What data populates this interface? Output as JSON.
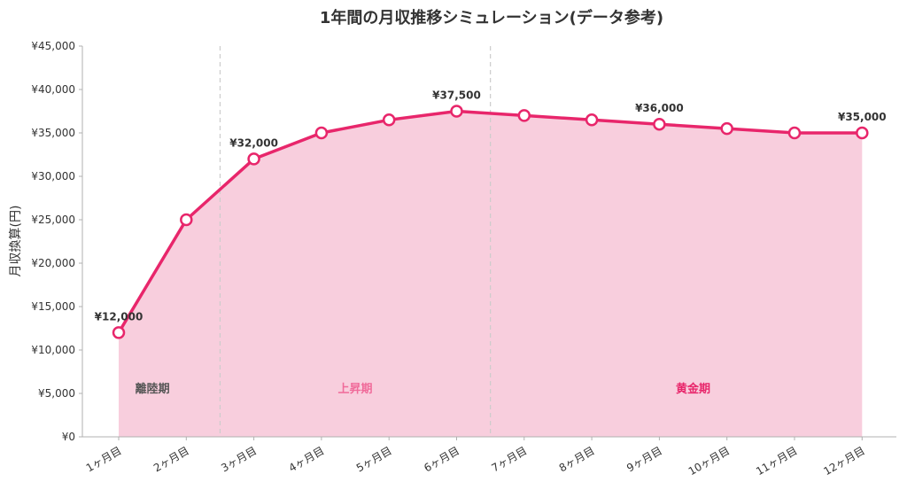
{
  "chart_data": {
    "type": "area",
    "title": "1年間の月収推移シミュレーション(データ参考)",
    "ylabel": "月収換算(円)",
    "xlabel": "",
    "categories": [
      "1ヶ月目",
      "2ヶ月目",
      "3ヶ月目",
      "4ヶ月目",
      "5ヶ月目",
      "6ヶ月目",
      "7ヶ月目",
      "8ヶ月目",
      "9ヶ月目",
      "10ヶ月目",
      "11ヶ月目",
      "12ヶ月目"
    ],
    "series": [
      {
        "values": [
          12000,
          25000,
          32000,
          35000,
          36500,
          37500,
          37000,
          36500,
          36000,
          35500,
          35000,
          35000
        ]
      }
    ],
    "ylim": [
      0,
      45000
    ],
    "yticks": [
      0,
      5000,
      10000,
      15000,
      20000,
      25000,
      30000,
      35000,
      40000,
      45000
    ],
    "ytick_labels": [
      "¥0",
      "¥5,000",
      "¥10,000",
      "¥15,000",
      "¥20,000",
      "¥25,000",
      "¥30,000",
      "¥35,000",
      "¥40,000",
      "¥45,000"
    ],
    "data_labels": [
      {
        "index": 0,
        "text": "¥12,000"
      },
      {
        "index": 2,
        "text": "¥32,000"
      },
      {
        "index": 5,
        "text": "¥37,500"
      },
      {
        "index": 8,
        "text": "¥36,000"
      },
      {
        "index": 11,
        "text": "¥35,000"
      }
    ],
    "phase_dividers_after_index": [
      1,
      5
    ],
    "phases": [
      {
        "label": "離陸期",
        "anchor_index": 0.5,
        "color": "#555555"
      },
      {
        "label": "上昇期",
        "anchor_index": 3.5,
        "color": "#f06b9a"
      },
      {
        "label": "黄金期",
        "anchor_index": 8.5,
        "color": "#e8266b"
      }
    ],
    "line_color": "#e8266b",
    "fill_color": "#f8cedd",
    "grid": false
  }
}
